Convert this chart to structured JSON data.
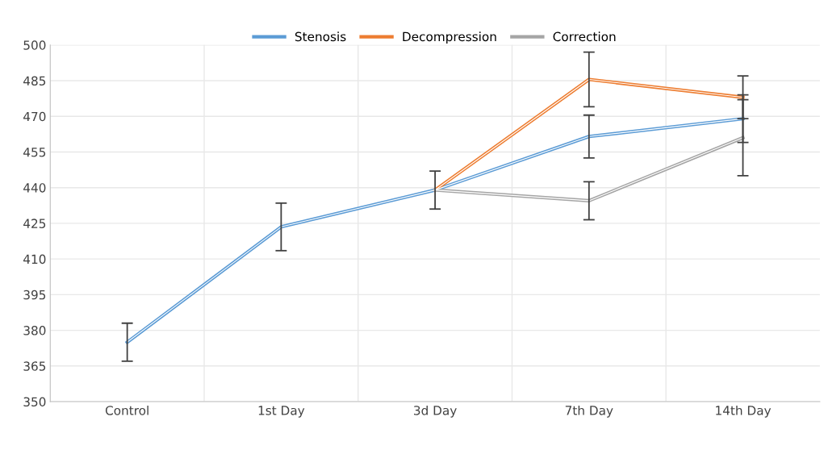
{
  "chart_data": {
    "type": "line",
    "categories": [
      "Control",
      "1st Day",
      "3d Day",
      "7th Day",
      "14th Day"
    ],
    "series": [
      {
        "name": "Stenosis",
        "color": "#5b9bd5",
        "values": [
          375,
          423.5,
          439,
          461.5,
          469
        ],
        "errors": [
          8,
          10,
          8,
          9,
          10
        ]
      },
      {
        "name": "Decompression",
        "color": "#ed7d31",
        "values": [
          null,
          null,
          439,
          485.5,
          478
        ],
        "errors": [
          null,
          null,
          null,
          11.5,
          9
        ]
      },
      {
        "name": "Correction",
        "color": "#a5a5a5",
        "values": [
          null,
          null,
          439,
          434.5,
          461
        ],
        "errors": [
          null,
          null,
          null,
          8,
          16
        ]
      }
    ],
    "ylim": [
      350,
      500
    ],
    "yticks": [
      350,
      365,
      380,
      395,
      410,
      425,
      440,
      455,
      470,
      485,
      500
    ],
    "grid": true,
    "legend": "top",
    "marker": "none",
    "line_style": "solid"
  }
}
